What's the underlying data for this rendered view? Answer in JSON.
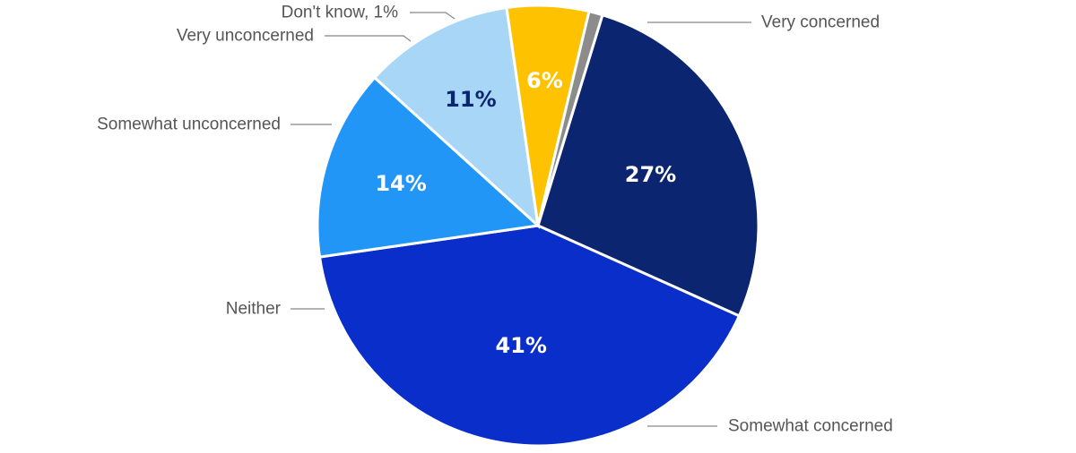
{
  "chart_data": {
    "type": "pie",
    "title": "",
    "legend": "none",
    "slices": [
      {
        "label": "Very concerned",
        "value": 27,
        "value_label": "27%",
        "color": "#0b2570",
        "text_color": "#ffffff"
      },
      {
        "label": "Somewhat concerned",
        "value": 41,
        "value_label": "41%",
        "color": "#0a2ec9",
        "text_color": "#ffffff"
      },
      {
        "label": "Neither",
        "value": 14,
        "value_label": "14%",
        "color": "#2196f7",
        "text_color": "#ffffff"
      },
      {
        "label": "Somewhat unconcerned",
        "value": 11,
        "value_label": "11%",
        "color": "#a7d6f7",
        "text_color": "#0b2570"
      },
      {
        "label": "Very unconcerned",
        "value": 6,
        "value_label": "6%",
        "color": "#ffc200",
        "text_color": "#ffffff"
      },
      {
        "label": "Don't know, 1%",
        "value": 1,
        "value_label": "",
        "color": "#8c8c8c",
        "text_color": "#ffffff"
      }
    ]
  }
}
